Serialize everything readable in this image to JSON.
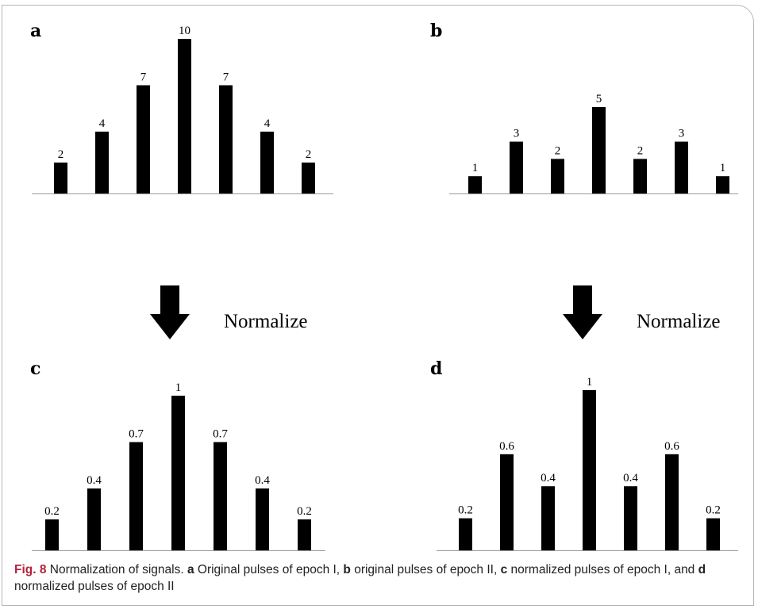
{
  "chart_data": [
    {
      "panel": "a",
      "type": "bar",
      "categories": [
        "",
        "",
        "",
        "",
        "",
        "",
        ""
      ],
      "values": [
        2,
        4,
        7,
        10,
        7,
        4,
        2
      ],
      "value_labels": [
        "2",
        "4",
        "7",
        "10",
        "7",
        "4",
        "2"
      ]
    },
    {
      "panel": "b",
      "type": "bar",
      "categories": [
        "",
        "",
        "",
        "",
        "",
        "",
        ""
      ],
      "values": [
        1,
        3,
        2,
        5,
        2,
        3,
        1
      ],
      "value_labels": [
        "1",
        "3",
        "2",
        "5",
        "2",
        "3",
        "1"
      ]
    },
    {
      "panel": "c",
      "type": "bar",
      "categories": [
        "",
        "",
        "",
        "",
        "",
        "",
        ""
      ],
      "values": [
        0.2,
        0.4,
        0.7,
        1,
        0.7,
        0.4,
        0.2
      ],
      "value_labels": [
        "0.2",
        "0.4",
        "0.7",
        "1",
        "0.7",
        "0.4",
        "0.2"
      ]
    },
    {
      "panel": "d",
      "type": "bar",
      "categories": [
        "",
        "",
        "",
        "",
        "",
        "",
        ""
      ],
      "values": [
        0.2,
        0.6,
        0.4,
        1,
        0.4,
        0.6,
        0.2
      ],
      "value_labels": [
        "0.2",
        "0.6",
        "0.4",
        "1",
        "0.4",
        "0.6",
        "0.2"
      ]
    }
  ],
  "arrows": {
    "left_label": "Normalize",
    "right_label": "Normalize"
  },
  "caption": {
    "fig_label": "Fig. 8",
    "title": "Normalization of signals.",
    "parts": [
      {
        "letter": "a",
        "text": " Original pulses of epoch I, "
      },
      {
        "letter": "b",
        "text": " original pulses of epoch II, "
      },
      {
        "letter": "c",
        "text": " normalized pulses of epoch I, and "
      },
      {
        "letter": "d",
        "text": " normalized pulses of epoch II"
      }
    ]
  },
  "colors": {
    "bar": "#000000",
    "axis": "#999999",
    "frame": "#b5b5b5",
    "fig_label": "#b0243a"
  }
}
